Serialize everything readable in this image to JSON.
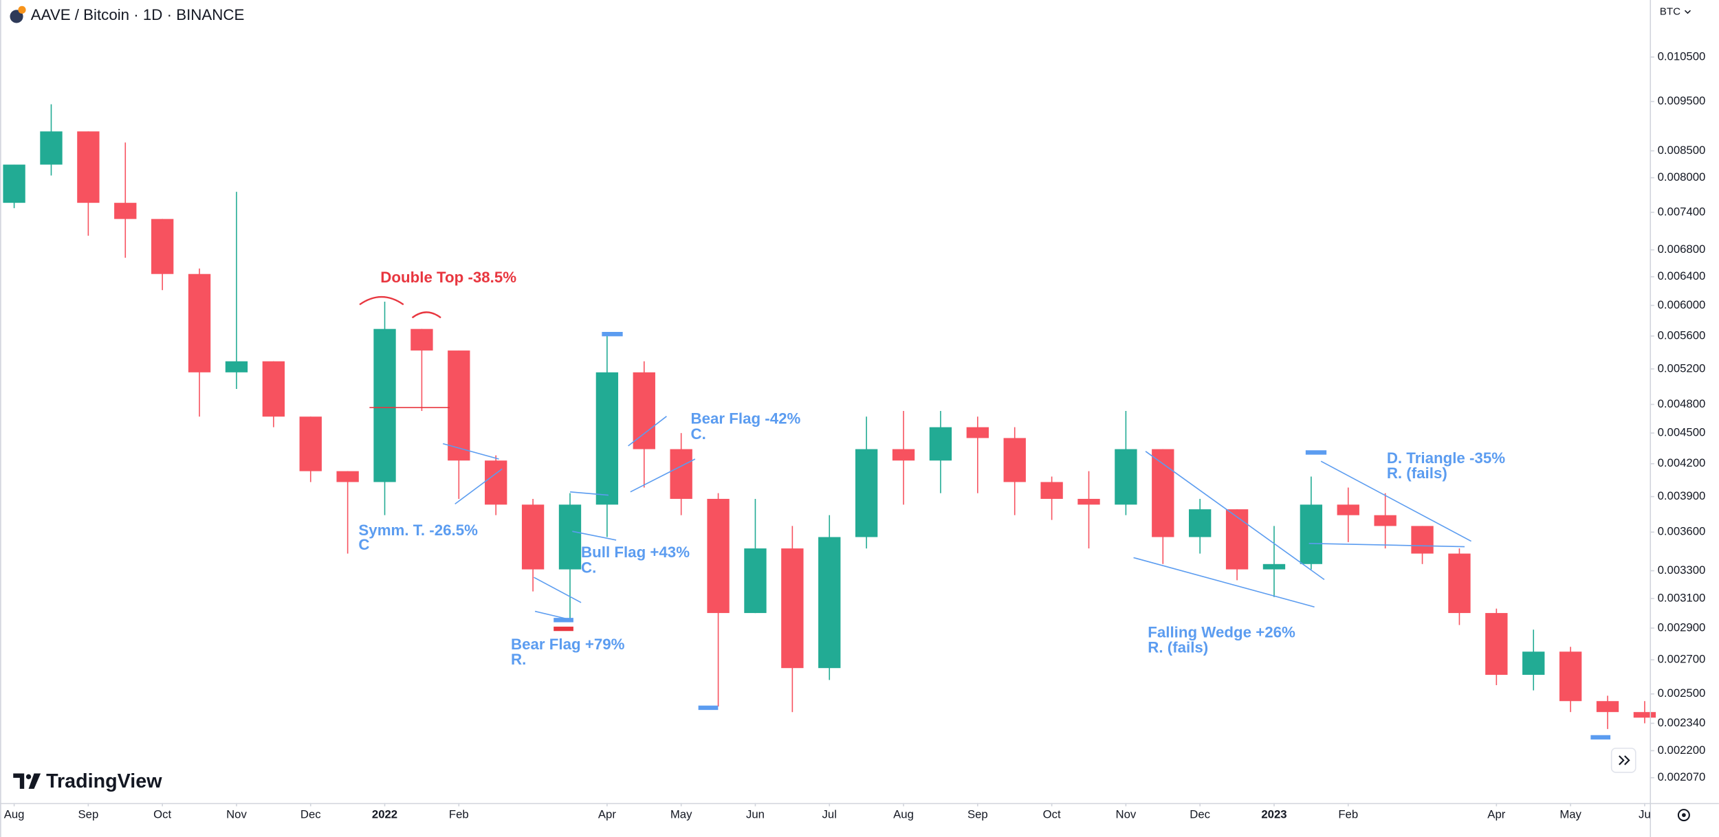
{
  "header": {
    "title": "AAVE / Bitcoin · 1D · BINANCE",
    "currency": "BTC"
  },
  "logo": "TradingView",
  "chart_data": {
    "type": "candlestick",
    "x": [
      0,
      0.5,
      1,
      1.5,
      2,
      2.5,
      3,
      3.5,
      4,
      4.5,
      5,
      5.5,
      6,
      6.5,
      7,
      7.5,
      8,
      8.5,
      9,
      9.5,
      10,
      10.5,
      11,
      11.5,
      12,
      12.5,
      13,
      13.5,
      14,
      14.5,
      15,
      15.5,
      16,
      16.5,
      17,
      17.5,
      18,
      18.5,
      19,
      19.5,
      20,
      20.5,
      21,
      21.5,
      22
    ],
    "open": [
      0.00756,
      0.00824,
      0.00888,
      0.00756,
      0.00729,
      0.00644,
      0.00516,
      0.00529,
      0.00467,
      0.00413,
      0.00403,
      0.00569,
      0.00542,
      0.00423,
      0.00383,
      0.00331,
      0.00383,
      0.00516,
      0.00434,
      0.00388,
      0.003,
      0.00347,
      0.00265,
      0.00356,
      0.00434,
      0.00423,
      0.00456,
      0.00445,
      0.00403,
      0.00388,
      0.00383,
      0.00434,
      0.00356,
      0.00379,
      0.00331,
      0.00335,
      0.00383,
      0.00374,
      0.00365,
      0.00343,
      0.003,
      0.00261,
      0.00275,
      0.00246,
      0.0024
    ],
    "high": [
      0.00824,
      0.00944,
      0.00888,
      0.00866,
      0.00729,
      0.00652,
      0.00775,
      0.00529,
      0.00467,
      0.00413,
      0.00605,
      0.00569,
      0.00542,
      0.00428,
      0.00388,
      0.00393,
      0.00562,
      0.00529,
      0.0045,
      0.00393,
      0.00388,
      0.00365,
      0.00374,
      0.00467,
      0.00473,
      0.00473,
      0.00467,
      0.00456,
      0.00408,
      0.00413,
      0.00473,
      0.00434,
      0.00388,
      0.00379,
      0.00365,
      0.00408,
      0.00398,
      0.00393,
      0.00365,
      0.00347,
      0.00303,
      0.00289,
      0.00278,
      0.00249,
      0.00246
    ],
    "low": [
      0.00747,
      0.00804,
      0.00702,
      0.00668,
      0.00621,
      0.00467,
      0.00497,
      0.00456,
      0.00403,
      0.00343,
      0.00374,
      0.00473,
      0.00388,
      0.00374,
      0.00315,
      0.00296,
      0.00356,
      0.00398,
      0.00374,
      0.00243,
      0.003,
      0.0024,
      0.00258,
      0.00347,
      0.00383,
      0.00393,
      0.00393,
      0.00374,
      0.0037,
      0.00347,
      0.00374,
      0.00335,
      0.00343,
      0.00323,
      0.00311,
      0.00331,
      0.00352,
      0.00347,
      0.00335,
      0.00292,
      0.00255,
      0.00252,
      0.0024,
      0.00231,
      0.00234
    ],
    "close": [
      0.00824,
      0.00888,
      0.00756,
      0.00729,
      0.00644,
      0.00516,
      0.00529,
      0.00467,
      0.00413,
      0.00403,
      0.00569,
      0.00542,
      0.00423,
      0.00383,
      0.00331,
      0.00383,
      0.00516,
      0.00434,
      0.00388,
      0.003,
      0.00347,
      0.00265,
      0.00356,
      0.00434,
      0.00423,
      0.00456,
      0.00445,
      0.00403,
      0.00388,
      0.00383,
      0.00434,
      0.00356,
      0.00379,
      0.00331,
      0.00335,
      0.00383,
      0.00374,
      0.00365,
      0.00343,
      0.003,
      0.00261,
      0.00275,
      0.00246,
      0.0024,
      0.00237
    ],
    "xlim": [
      -0.19,
      22.07
    ],
    "xticks": [
      {
        "value": 0,
        "label": "Aug"
      },
      {
        "value": 1,
        "label": "Sep"
      },
      {
        "value": 2,
        "label": "Oct"
      },
      {
        "value": 3,
        "label": "Nov"
      },
      {
        "value": 4,
        "label": "Dec"
      },
      {
        "value": 5,
        "label": "2022"
      },
      {
        "value": 6,
        "label": "Feb"
      },
      {
        "value": 8,
        "label": "Apr"
      },
      {
        "value": 9,
        "label": "May"
      },
      {
        "value": 10,
        "label": "Jun"
      },
      {
        "value": 11,
        "label": "Jul"
      },
      {
        "value": 12,
        "label": "Aug"
      },
      {
        "value": 13,
        "label": "Sep"
      },
      {
        "value": 14,
        "label": "Oct"
      },
      {
        "value": 15,
        "label": "Nov"
      },
      {
        "value": 16,
        "label": "Dec"
      },
      {
        "value": 17,
        "label": "2023"
      },
      {
        "value": 18,
        "label": "Feb"
      },
      {
        "value": 20,
        "label": "Apr"
      },
      {
        "value": 21,
        "label": "May"
      },
      {
        "value": 22,
        "label": "Ju"
      }
    ],
    "ylim": [
      0.00196,
      0.01194
    ],
    "log_scale": true,
    "grid": false,
    "yticks": [
      {
        "value": 0.0105,
        "label": "0.010500"
      },
      {
        "value": 0.0095,
        "label": "0.009500"
      },
      {
        "value": 0.0085,
        "label": "0.008500"
      },
      {
        "value": 0.008,
        "label": "0.008000"
      },
      {
        "value": 0.0074,
        "label": "0.007400"
      },
      {
        "value": 0.0068,
        "label": "0.006800"
      },
      {
        "value": 0.0064,
        "label": "0.006400"
      },
      {
        "value": 0.006,
        "label": "0.006000"
      },
      {
        "value": 0.0056,
        "label": "0.005600"
      },
      {
        "value": 0.0052,
        "label": "0.005200"
      },
      {
        "value": 0.0048,
        "label": "0.004800"
      },
      {
        "value": 0.0045,
        "label": "0.004500"
      },
      {
        "value": 0.0042,
        "label": "0.004200"
      },
      {
        "value": 0.0039,
        "label": "0.003900"
      },
      {
        "value": 0.0036,
        "label": "0.003600"
      },
      {
        "value": 0.0033,
        "label": "0.003300"
      },
      {
        "value": 0.0031,
        "label": "0.003100"
      },
      {
        "value": 0.0029,
        "label": "0.002900"
      },
      {
        "value": 0.0027,
        "label": "0.002700"
      },
      {
        "value": 0.0025,
        "label": "0.002500"
      },
      {
        "value": 0.00234,
        "label": "0.002340"
      },
      {
        "value": 0.0022,
        "label": "0.002200"
      },
      {
        "value": 0.00207,
        "label": "0.002070"
      }
    ],
    "up_color": "#22ab94",
    "down_color": "#f7525f",
    "annotations": [
      {
        "text": "Double Top -38.5%"
      },
      {
        "text": "Symm. T. -26.5%",
        "note": "C"
      },
      {
        "text": "Bear Flag +79%",
        "note": "R."
      },
      {
        "text": "Bull Flag +43%",
        "note": "C."
      },
      {
        "text": "Bear Flag -42%",
        "note": "C."
      },
      {
        "text": "Falling Wedge +26%",
        "note": "R. (fails)"
      },
      {
        "text": "D. Triangle -35%",
        "note": "R. (fails)"
      }
    ]
  }
}
